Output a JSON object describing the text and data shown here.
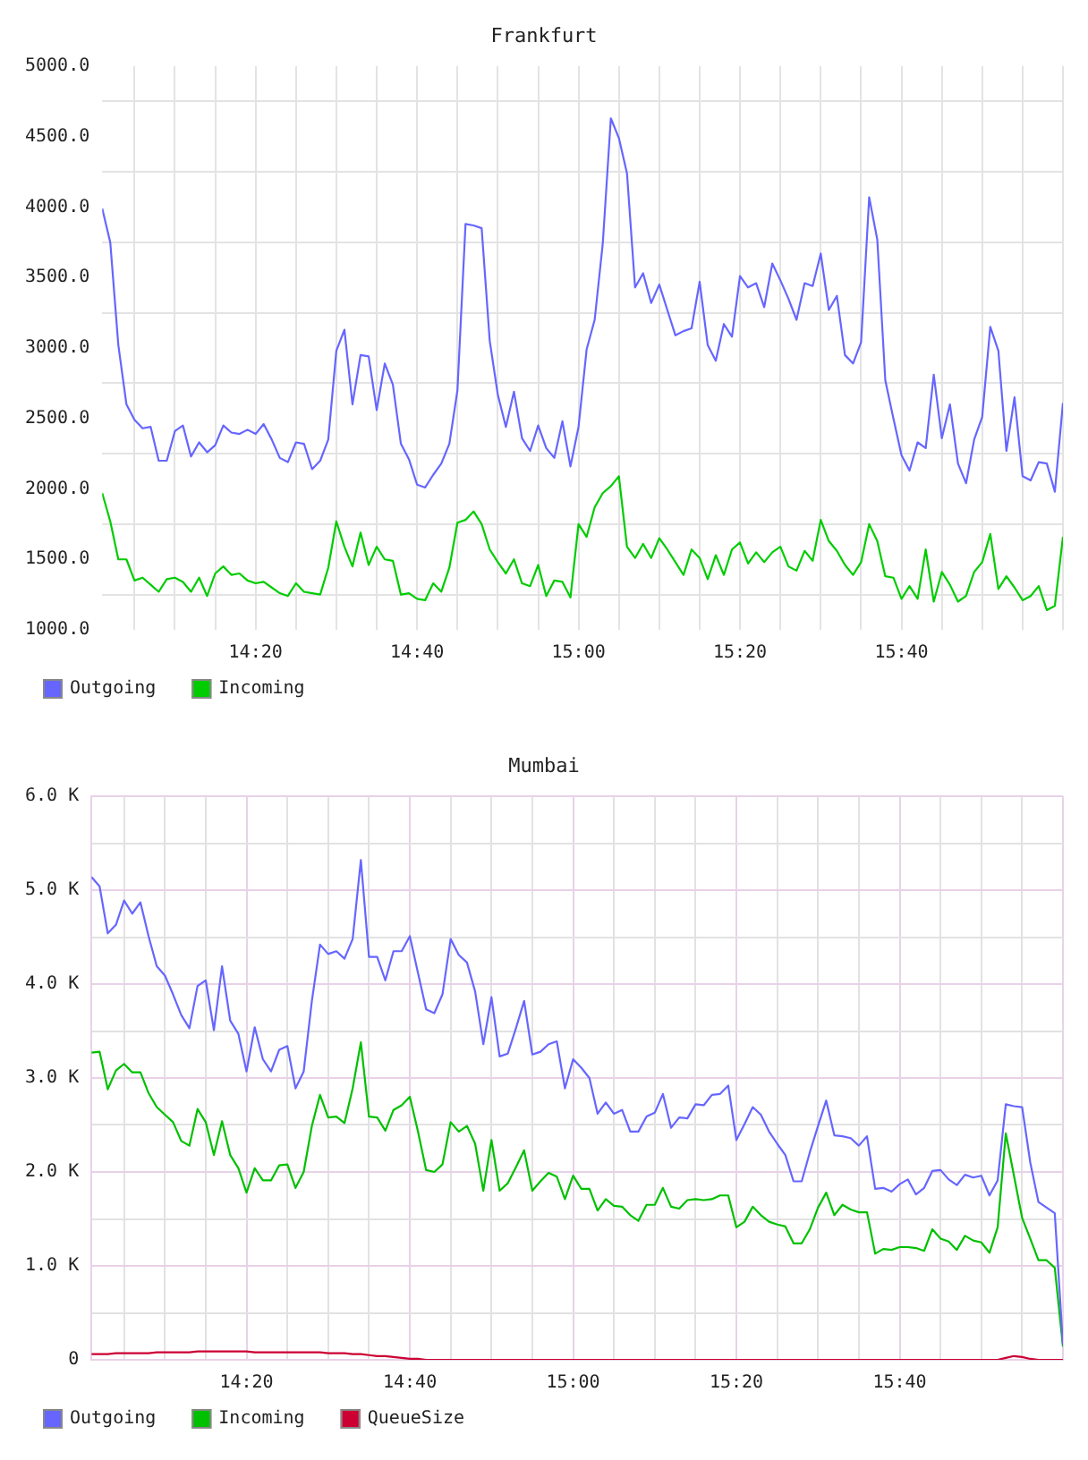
{
  "chart_data": [
    {
      "type": "line",
      "title": "Frankfurt",
      "x": [
        14.0167,
        14.0333,
        14.05,
        14.0667,
        14.0833,
        14.1,
        14.1167,
        14.1333,
        14.15,
        14.1667,
        14.1833,
        14.2,
        14.2167,
        14.2333,
        14.25,
        14.2667,
        14.2833,
        14.3,
        14.3167,
        14.3333,
        14.35,
        14.3667,
        14.3833,
        14.4,
        14.4167,
        14.4333,
        14.45,
        14.4667,
        14.4833,
        14.5,
        14.5167,
        14.5333,
        14.55,
        14.5667,
        14.5833,
        14.6,
        14.6167,
        14.6333,
        14.65,
        14.6667,
        14.6833,
        14.7,
        14.7167,
        14.7333,
        14.75,
        14.7667,
        14.7833,
        14.8,
        14.8167,
        14.8333,
        14.85,
        14.8667,
        14.8833,
        14.9,
        14.9167,
        14.9333,
        14.95,
        14.9667,
        14.9833,
        15,
        15.0167,
        15.0333,
        15.05,
        15.0667,
        15.0833,
        15.1,
        15.1167,
        15.1333,
        15.15,
        15.1667,
        15.1833,
        15.2,
        15.2167,
        15.2333,
        15.25,
        15.2667,
        15.2833,
        15.3,
        15.3167,
        15.3333,
        15.35,
        15.3667,
        15.3833,
        15.4,
        15.4167,
        15.4333,
        15.45,
        15.4667,
        15.4833,
        15.5,
        15.5167,
        15.5333,
        15.55,
        15.5667,
        15.5833,
        15.6,
        15.6167,
        15.6333,
        15.65,
        15.6667,
        15.6833,
        15.7,
        15.7167,
        15.7333,
        15.75,
        15.7667,
        15.7833,
        15.8,
        15.8167,
        15.8333,
        15.85,
        15.8667,
        15.8833,
        15.9,
        15.9167,
        15.9333,
        15.95,
        15.9667,
        15.9833,
        16
      ],
      "xlim": [
        14.0167,
        16
      ],
      "xticks": [
        {
          "value": 14.0833,
          "label": null
        },
        {
          "value": 14.1667,
          "label": null
        },
        {
          "value": 14.25,
          "label": null
        },
        {
          "value": 14.3333,
          "label": "14:20"
        },
        {
          "value": 14.4167,
          "label": null
        },
        {
          "value": 14.5,
          "label": null
        },
        {
          "value": 14.5833,
          "label": null
        },
        {
          "value": 14.6667,
          "label": "14:40"
        },
        {
          "value": 14.75,
          "label": null
        },
        {
          "value": 14.8333,
          "label": null
        },
        {
          "value": 14.9167,
          "label": null
        },
        {
          "value": 15,
          "label": "15:00"
        },
        {
          "value": 15.0833,
          "label": null
        },
        {
          "value": 15.1667,
          "label": null
        },
        {
          "value": 15.25,
          "label": null
        },
        {
          "value": 15.3333,
          "label": "15:20"
        },
        {
          "value": 15.4167,
          "label": null
        },
        {
          "value": 15.5,
          "label": null
        },
        {
          "value": 15.5833,
          "label": null
        },
        {
          "value": 15.6667,
          "label": "15:40"
        },
        {
          "value": 15.75,
          "label": null
        },
        {
          "value": 15.8333,
          "label": null
        },
        {
          "value": 15.9167,
          "label": null
        },
        {
          "value": 16,
          "label": null
        }
      ],
      "ylim": [
        1000,
        5000
      ],
      "yticks": [
        {
          "value": 1000,
          "label": "1000.0"
        },
        {
          "value": 1250,
          "label": null
        },
        {
          "value": 1500,
          "label": "1500.0"
        },
        {
          "value": 1750,
          "label": null
        },
        {
          "value": 2000,
          "label": "2000.0"
        },
        {
          "value": 2250,
          "label": null
        },
        {
          "value": 2500,
          "label": "2500.0"
        },
        {
          "value": 2750,
          "label": null
        },
        {
          "value": 3000,
          "label": "3000.0"
        },
        {
          "value": 3250,
          "label": null
        },
        {
          "value": 3500,
          "label": "3500.0"
        },
        {
          "value": 3750,
          "label": null
        },
        {
          "value": 4000,
          "label": "4000.0"
        },
        {
          "value": 4250,
          "label": null
        },
        {
          "value": 4500,
          "label": "4500.0"
        },
        {
          "value": 4750,
          "label": null
        },
        {
          "value": 5000,
          "label": "5000.0"
        }
      ],
      "grid": true,
      "legend": "bottom left",
      "series": [
        {
          "name": "Outgoing",
          "color": "#6666ff",
          "values": [
            3990,
            3750,
            3020,
            2600,
            2490,
            2430,
            2440,
            2200,
            2200,
            2410,
            2450,
            2230,
            2330,
            2260,
            2310,
            2450,
            2400,
            2390,
            2420,
            2390,
            2460,
            2350,
            2220,
            2190,
            2330,
            2320,
            2140,
            2200,
            2350,
            2980,
            3130,
            2600,
            2950,
            2940,
            2560,
            2890,
            2740,
            2320,
            2210,
            2030,
            2010,
            2100,
            2180,
            2320,
            2700,
            3880,
            3870,
            3850,
            3050,
            2670,
            2440,
            2690,
            2360,
            2270,
            2450,
            2290,
            2220,
            2480,
            2160,
            2440,
            2990,
            3200,
            3740,
            4630,
            4490,
            4240,
            3430,
            3530,
            3320,
            3450,
            3270,
            3090,
            3120,
            3140,
            3470,
            3020,
            2910,
            3170,
            3080,
            3510,
            3430,
            3460,
            3290,
            3600,
            3480,
            3350,
            3200,
            3460,
            3440,
            3670,
            3270,
            3370,
            2950,
            2890,
            3040,
            4070,
            3770,
            2770,
            2500,
            2240,
            2130,
            2330,
            2290,
            2810,
            2360,
            2600,
            2180,
            2040,
            2350,
            2510,
            3150,
            2980,
            2270,
            2650,
            2090,
            2060,
            2190,
            2180,
            1980,
            2610
          ]
        },
        {
          "name": "Incoming",
          "color": "#00cc00",
          "values": [
            1970,
            1770,
            1500,
            1500,
            1350,
            1370,
            1320,
            1270,
            1360,
            1370,
            1340,
            1270,
            1370,
            1240,
            1400,
            1450,
            1390,
            1400,
            1350,
            1330,
            1340,
            1300,
            1260,
            1240,
            1330,
            1270,
            1260,
            1250,
            1440,
            1770,
            1590,
            1450,
            1690,
            1460,
            1590,
            1500,
            1490,
            1250,
            1260,
            1220,
            1210,
            1330,
            1270,
            1440,
            1760,
            1780,
            1840,
            1750,
            1570,
            1480,
            1400,
            1500,
            1330,
            1310,
            1460,
            1240,
            1350,
            1340,
            1230,
            1750,
            1660,
            1870,
            1970,
            2020,
            2090,
            1590,
            1510,
            1610,
            1510,
            1650,
            1570,
            1480,
            1390,
            1570,
            1510,
            1360,
            1530,
            1390,
            1570,
            1620,
            1470,
            1550,
            1480,
            1550,
            1590,
            1450,
            1420,
            1560,
            1490,
            1780,
            1630,
            1560,
            1460,
            1390,
            1480,
            1750,
            1630,
            1380,
            1370,
            1220,
            1310,
            1220,
            1570,
            1200,
            1410,
            1320,
            1200,
            1240,
            1410,
            1480,
            1680,
            1290,
            1380,
            1300,
            1210,
            1240,
            1310,
            1140,
            1170,
            1660
          ]
        }
      ]
    },
    {
      "type": "line",
      "title": "Mumbai",
      "x": [
        14.0167,
        14.0333,
        14.05,
        14.0667,
        14.0833,
        14.1,
        14.1167,
        14.1333,
        14.15,
        14.1667,
        14.1833,
        14.2,
        14.2167,
        14.2333,
        14.25,
        14.2667,
        14.2833,
        14.3,
        14.3167,
        14.3333,
        14.35,
        14.3667,
        14.3833,
        14.4,
        14.4167,
        14.4333,
        14.45,
        14.4667,
        14.4833,
        14.5,
        14.5167,
        14.5333,
        14.55,
        14.5667,
        14.5833,
        14.6,
        14.6167,
        14.6333,
        14.65,
        14.6667,
        14.6833,
        14.7,
        14.7167,
        14.7333,
        14.75,
        14.7667,
        14.7833,
        14.8,
        14.8167,
        14.8333,
        14.85,
        14.8667,
        14.8833,
        14.9,
        14.9167,
        14.9333,
        14.95,
        14.9667,
        14.9833,
        15,
        15.0167,
        15.0333,
        15.05,
        15.0667,
        15.0833,
        15.1,
        15.1167,
        15.1333,
        15.15,
        15.1667,
        15.1833,
        15.2,
        15.2167,
        15.2333,
        15.25,
        15.2667,
        15.2833,
        15.3,
        15.3167,
        15.3333,
        15.35,
        15.3667,
        15.3833,
        15.4,
        15.4167,
        15.4333,
        15.45,
        15.4667,
        15.4833,
        15.5,
        15.5167,
        15.5333,
        15.55,
        15.5667,
        15.5833,
        15.6,
        15.6167,
        15.6333,
        15.65,
        15.6667,
        15.6833,
        15.7,
        15.7167,
        15.7333,
        15.75,
        15.7667,
        15.7833,
        15.8,
        15.8167,
        15.8333,
        15.85,
        15.8667,
        15.8833,
        15.9,
        15.9167,
        15.9333,
        15.95,
        15.9667,
        15.9833,
        16
      ],
      "xlim": [
        14.0167,
        16
      ],
      "xticks": [
        {
          "value": 14.0833,
          "label": null
        },
        {
          "value": 14.1667,
          "label": null
        },
        {
          "value": 14.25,
          "label": null
        },
        {
          "value": 14.3333,
          "label": "14:20"
        },
        {
          "value": 14.4167,
          "label": null
        },
        {
          "value": 14.5,
          "label": null
        },
        {
          "value": 14.5833,
          "label": null
        },
        {
          "value": 14.6667,
          "label": "14:40"
        },
        {
          "value": 14.75,
          "label": null
        },
        {
          "value": 14.8333,
          "label": null
        },
        {
          "value": 14.9167,
          "label": null
        },
        {
          "value": 15,
          "label": "15:00"
        },
        {
          "value": 15.0833,
          "label": null
        },
        {
          "value": 15.1667,
          "label": null
        },
        {
          "value": 15.25,
          "label": null
        },
        {
          "value": 15.3333,
          "label": "15:20"
        },
        {
          "value": 15.4167,
          "label": null
        },
        {
          "value": 15.5,
          "label": null
        },
        {
          "value": 15.5833,
          "label": null
        },
        {
          "value": 15.6667,
          "label": "15:40"
        },
        {
          "value": 15.75,
          "label": null
        },
        {
          "value": 15.8333,
          "label": null
        },
        {
          "value": 15.9167,
          "label": null
        },
        {
          "value": 16,
          "label": null
        }
      ],
      "ylim": [
        0,
        6000
      ],
      "yticks": [
        0,
        {
          "value": 500,
          "label": null
        },
        {
          "value": 1000,
          "label": "1.0 K"
        },
        {
          "value": 1500,
          "label": null
        },
        {
          "value": 2000,
          "label": "2.0 K"
        },
        {
          "value": 2500,
          "label": null
        },
        {
          "value": 3000,
          "label": "3.0 K"
        },
        {
          "value": 3500,
          "label": null
        },
        {
          "value": 4000,
          "label": "4.0 K"
        },
        {
          "value": 4500,
          "label": null
        },
        {
          "value": 5000,
          "label": "5.0 K"
        },
        {
          "value": 5500,
          "label": null
        },
        {
          "value": 6000,
          "label": "6.0 K"
        }
      ],
      "grid": true,
      "legend": "bottom left",
      "series": [
        {
          "name": "Outgoing",
          "color": "#6666ff",
          "values": [
            5140,
            5040,
            4540,
            4630,
            4890,
            4750,
            4870,
            4510,
            4190,
            4090,
            3890,
            3670,
            3530,
            3980,
            4040,
            3510,
            4190,
            3610,
            3470,
            3070,
            3540,
            3200,
            3070,
            3300,
            3340,
            2890,
            3070,
            3820,
            4420,
            4320,
            4350,
            4270,
            4480,
            5320,
            4290,
            4290,
            4040,
            4350,
            4350,
            4510,
            4120,
            3730,
            3690,
            3890,
            4480,
            4310,
            4230,
            3920,
            3360,
            3860,
            3230,
            3260,
            3530,
            3820,
            3250,
            3280,
            3360,
            3390,
            2890,
            3200,
            3110,
            3000,
            2620,
            2740,
            2620,
            2660,
            2430,
            2430,
            2590,
            2630,
            2830,
            2470,
            2580,
            2570,
            2720,
            2710,
            2820,
            2830,
            2920,
            2340,
            2510,
            2690,
            2610,
            2430,
            2300,
            2180,
            1900,
            1900,
            2210,
            2490,
            2760,
            2390,
            2380,
            2360,
            2280,
            2380,
            1820,
            1830,
            1790,
            1870,
            1920,
            1760,
            1830,
            2010,
            2020,
            1920,
            1860,
            1970,
            1940,
            1960,
            1750,
            1910,
            2720,
            2700,
            2690,
            2100,
            1680,
            1620,
            1560,
            160
          ]
        },
        {
          "name": "Incoming",
          "color": "#00c000",
          "values": [
            3270,
            3280,
            2880,
            3080,
            3150,
            3060,
            3060,
            2840,
            2690,
            2610,
            2530,
            2330,
            2280,
            2670,
            2530,
            2180,
            2540,
            2180,
            2040,
            1780,
            2040,
            1910,
            1910,
            2070,
            2080,
            1830,
            2000,
            2490,
            2820,
            2580,
            2590,
            2520,
            2890,
            3380,
            2590,
            2580,
            2440,
            2660,
            2710,
            2800,
            2430,
            2020,
            2000,
            2080,
            2530,
            2430,
            2490,
            2300,
            1800,
            2340,
            1800,
            1880,
            2050,
            2230,
            1800,
            1900,
            1990,
            1950,
            1710,
            1960,
            1820,
            1820,
            1590,
            1710,
            1640,
            1630,
            1540,
            1480,
            1650,
            1650,
            1830,
            1630,
            1610,
            1700,
            1710,
            1700,
            1710,
            1750,
            1750,
            1410,
            1470,
            1630,
            1540,
            1470,
            1440,
            1420,
            1240,
            1240,
            1390,
            1620,
            1780,
            1540,
            1650,
            1600,
            1570,
            1570,
            1130,
            1180,
            1170,
            1200,
            1200,
            1190,
            1160,
            1390,
            1290,
            1260,
            1170,
            1320,
            1270,
            1250,
            1140,
            1410,
            2410,
            1960,
            1510,
            1290,
            1060,
            1060,
            980,
            140
          ]
        },
        {
          "name": "QueueSize",
          "color": "#cc0033",
          "values": [
            60,
            60,
            60,
            70,
            70,
            70,
            70,
            70,
            80,
            80,
            80,
            80,
            80,
            90,
            90,
            90,
            90,
            90,
            90,
            90,
            80,
            80,
            80,
            80,
            80,
            80,
            80,
            80,
            80,
            70,
            70,
            70,
            60,
            60,
            50,
            40,
            40,
            30,
            20,
            10,
            10,
            0,
            0,
            0,
            0,
            0,
            0,
            0,
            0,
            0,
            0,
            0,
            0,
            0,
            0,
            0,
            0,
            0,
            0,
            0,
            0,
            0,
            0,
            0,
            0,
            0,
            0,
            0,
            0,
            0,
            0,
            0,
            0,
            0,
            0,
            0,
            0,
            0,
            0,
            0,
            0,
            0,
            0,
            0,
            0,
            0,
            0,
            0,
            0,
            0,
            0,
            0,
            0,
            0,
            0,
            0,
            0,
            0,
            0,
            0,
            0,
            0,
            0,
            0,
            0,
            0,
            0,
            0,
            0,
            0,
            0,
            0,
            20,
            40,
            30,
            10,
            0,
            0,
            0,
            0
          ]
        }
      ]
    }
  ]
}
